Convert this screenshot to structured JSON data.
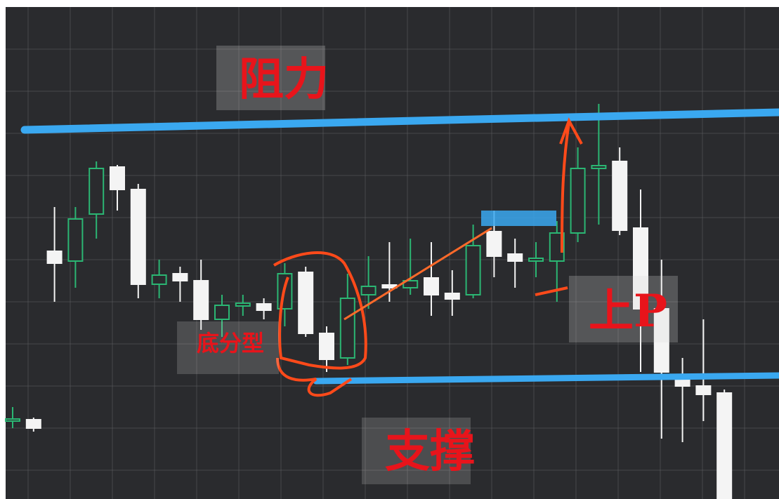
{
  "chart_data": {
    "type": "candlestick",
    "annotations": [
      "阻力",
      "底分型",
      "上P",
      "支撑"
    ],
    "up_color": "#2bb673",
    "down_color": "#f4f4f4",
    "open": [
      112,
      113,
      353,
      339,
      406,
      473,
      441,
      306,
      321,
      311,
      256,
      275,
      278,
      271,
      323,
      236,
      201,
      291,
      305,
      301,
      315,
      293,
      291,
      381,
      349,
      339,
      339,
      379,
      471,
      481,
      386,
      271,
      171,
      161,
      151
    ],
    "high": [
      131,
      116,
      416,
      416,
      481,
      476,
      449,
      341,
      331,
      341,
      291,
      291,
      286,
      336,
      331,
      246,
      321,
      346,
      366,
      371,
      366,
      326,
      391,
      411,
      371,
      366,
      396,
      501,
      563,
      501,
      441,
      341,
      201,
      256,
      156
    ],
    "low": [
      101,
      96,
      281,
      301,
      371,
      411,
      286,
      286,
      281,
      241,
      231,
      261,
      256,
      246,
      231,
      181,
      191,
      271,
      281,
      291,
      261,
      261,
      286,
      316,
      301,
      316,
      281,
      366,
      391,
      376,
      181,
      86,
      81,
      111,
      0
    ],
    "close": [
      114,
      101,
      336,
      399,
      471,
      441,
      306,
      319,
      311,
      256,
      276,
      279,
      269,
      321,
      236,
      199,
      286,
      303,
      301,
      311,
      291,
      285,
      361,
      346,
      339,
      343,
      379,
      471,
      475,
      383,
      271,
      181,
      161,
      149,
      0
    ],
    "ylim": [
      0,
      701
    ]
  }
}
